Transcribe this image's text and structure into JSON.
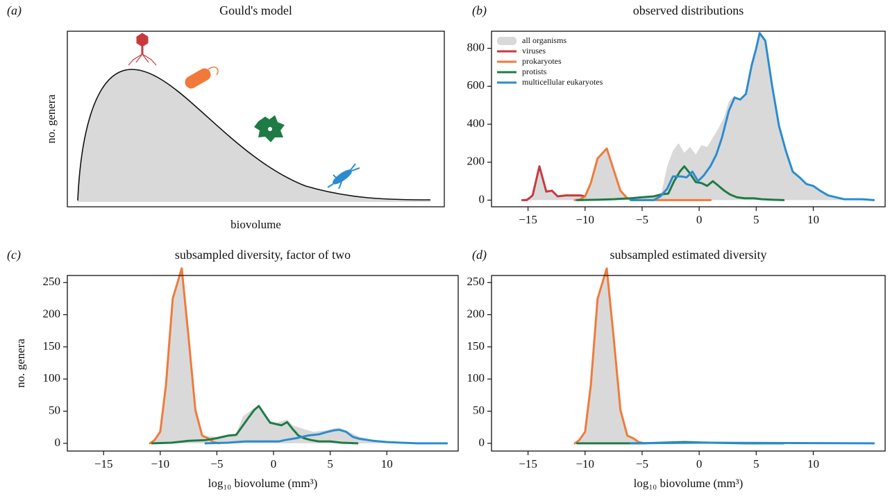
{
  "chart_data": [
    {
      "type": "illustration",
      "panel_label": "(a)",
      "title": "Gould's model",
      "xlabel": "biovolume",
      "ylabel": "no. genera"
    },
    {
      "type": "line",
      "panel_label": "(b)",
      "title": "observed distributions",
      "legend": "upper left",
      "xlim": [
        -18.2,
        16.3
      ],
      "ylim": [
        -35,
        890
      ],
      "xticks": [
        {
          "value": -15,
          "label": "−15"
        },
        {
          "value": -10,
          "label": "−10"
        },
        {
          "value": -5,
          "label": "−5"
        },
        0,
        5,
        10
      ],
      "yticks": [
        0,
        200,
        400,
        600,
        800
      ],
      "series": [
        {
          "name": "all organisms",
          "style": "area",
          "color": "#d9d9d9",
          "x": [
            -15.5,
            -14.6,
            -14,
            -13.4,
            -12.9,
            -12.4,
            -11.2,
            -10,
            -9.5,
            -8.9,
            -8.1,
            -7.5,
            -6.9,
            -6.3,
            -5,
            -4,
            -3.3,
            -2.8,
            -2.3,
            -1.8,
            -1.3,
            -0.8,
            -0.3,
            0.2,
            0.7,
            1.2,
            1.7,
            2.2,
            2.6,
            3.1,
            3.6,
            4.1,
            4.6,
            5,
            5.3,
            5.8,
            6.4,
            7,
            7.6,
            8.2,
            8.8,
            9.4,
            10,
            10.6,
            11.3,
            12,
            12.7,
            14.3,
            15.3
          ],
          "values": [
            0,
            25,
            178,
            45,
            50,
            20,
            25,
            25,
            90,
            220,
            272,
            160,
            50,
            10,
            15,
            20,
            40,
            180,
            260,
            300,
            250,
            280,
            240,
            290,
            280,
            330,
            380,
            440,
            520,
            550,
            530,
            560,
            710,
            800,
            880,
            840,
            600,
            390,
            260,
            150,
            120,
            85,
            75,
            50,
            25,
            15,
            5,
            5,
            0
          ]
        },
        {
          "name": "viruses",
          "style": "line",
          "color": "#c8393e",
          "x": [
            -15.5,
            -15.1,
            -14.6,
            -14,
            -13.4,
            -12.9,
            -12.4,
            -11.7,
            -11.2,
            -10.4,
            -10
          ],
          "values": [
            0,
            0,
            25,
            178,
            45,
            50,
            20,
            25,
            25,
            25,
            20
          ]
        },
        {
          "name": "prokaryotes",
          "style": "line",
          "color": "#f07a3a",
          "x": [
            -10.9,
            -10.5,
            -10,
            -9.5,
            -8.9,
            -8.1,
            -7.5,
            -6.9,
            -6.3,
            -5.8,
            -4,
            -2,
            0,
            1
          ],
          "values": [
            0,
            2,
            20,
            90,
            220,
            272,
            160,
            50,
            10,
            0,
            0,
            0,
            0,
            0
          ]
        },
        {
          "name": "protists",
          "style": "line",
          "color": "#1e7b45",
          "x": [
            -10.7,
            -9,
            -7.5,
            -6,
            -5,
            -4,
            -3.3,
            -2.7,
            -2.2,
            -1.7,
            -1.3,
            -0.8,
            -0.3,
            0.2,
            0.7,
            1.2,
            1.7,
            2.2,
            2.7,
            3.3,
            4,
            4.8,
            5.5,
            6.5,
            7.4
          ],
          "values": [
            0,
            2,
            5,
            10,
            15,
            20,
            30,
            35,
            100,
            150,
            178,
            140,
            95,
            90,
            75,
            100,
            75,
            50,
            30,
            15,
            10,
            10,
            5,
            2,
            0
          ]
        },
        {
          "name": "multicellular eukaryotes",
          "style": "line",
          "color": "#2a8ccf",
          "x": [
            -6,
            -4,
            -3.4,
            -2.8,
            -2.3,
            -1.6,
            -1.1,
            -0.6,
            -0.1,
            0.4,
            1,
            1.5,
            2,
            2.6,
            3.1,
            3.6,
            4.1,
            4.6,
            5,
            5.3,
            5.8,
            6.4,
            7,
            7.6,
            8.2,
            8.8,
            9.4,
            10,
            10.6,
            11.3,
            12,
            12.7,
            13.5,
            14.3,
            15.3
          ],
          "values": [
            0,
            0,
            20,
            60,
            125,
            125,
            120,
            150,
            100,
            130,
            180,
            240,
            330,
            470,
            540,
            530,
            560,
            710,
            800,
            880,
            840,
            600,
            390,
            260,
            150,
            120,
            85,
            75,
            50,
            25,
            15,
            5,
            5,
            5,
            0
          ]
        }
      ]
    },
    {
      "type": "line",
      "panel_label": "(c)",
      "title": "subsampled diversity, factor of two",
      "xlabel": "log₁₀ biovolume (mm³)",
      "ylabel": "no. genera",
      "xlim": [
        -18.2,
        16.3
      ],
      "ylim": [
        -12,
        261
      ],
      "xticks": [
        {
          "value": -15,
          "label": "−15"
        },
        {
          "value": -10,
          "label": "−10"
        },
        {
          "value": -5,
          "label": "−5"
        },
        0,
        5,
        10
      ],
      "yticks": [
        0,
        50,
        100,
        150,
        200,
        250
      ],
      "series": [
        {
          "style": "area",
          "color": "#d9d9d9",
          "x": [
            -10.9,
            -10,
            -9.5,
            -8.9,
            -8.1,
            -7.5,
            -6.9,
            -6.3,
            -5,
            -4,
            -3.3,
            -2.7,
            -1.7,
            -1.3,
            -0.8,
            -0.3,
            0.2,
            1.2,
            1.7,
            2.7,
            3.5,
            4.6,
            5.3,
            5.8,
            6.4,
            7.6,
            8.8,
            10,
            11.3,
            12.7,
            15.3
          ],
          "values": [
            0,
            18,
            90,
            225,
            272,
            165,
            52,
            12,
            10,
            14,
            15,
            42,
            55,
            60,
            48,
            35,
            32,
            37,
            28,
            22,
            18,
            20,
            23,
            24,
            20,
            10,
            5,
            2,
            1,
            0,
            0
          ]
        },
        {
          "style": "line",
          "color": "#f07a3a",
          "x": [
            -10.9,
            -10.5,
            -10,
            -9.5,
            -8.9,
            -8.1,
            -7.5,
            -6.9,
            -6.3,
            -5.8,
            -5.3,
            -4.8
          ],
          "values": [
            0,
            5,
            18,
            90,
            225,
            272,
            165,
            52,
            12,
            8,
            2,
            0
          ]
        },
        {
          "style": "line",
          "color": "#1e7b45",
          "x": [
            -10.7,
            -9,
            -7.5,
            -6,
            -5,
            -4,
            -3.3,
            -2.2,
            -1.7,
            -1.3,
            -0.8,
            -0.3,
            0.2,
            0.7,
            1.2,
            1.7,
            2.2,
            2.7,
            3.3,
            4,
            5,
            6,
            7.4
          ],
          "values": [
            0,
            1,
            4,
            5,
            8,
            12,
            13,
            40,
            52,
            58,
            45,
            32,
            30,
            28,
            33,
            22,
            12,
            8,
            5,
            3,
            3,
            1,
            0
          ]
        },
        {
          "style": "line",
          "color": "#2a8ccf",
          "x": [
            -6,
            -4,
            -2.5,
            -1,
            0.5,
            1,
            2,
            3,
            4,
            4.6,
            5.3,
            5.8,
            6.4,
            7,
            7.6,
            8.8,
            10,
            11.3,
            12.7,
            15.3
          ],
          "values": [
            0,
            1,
            3,
            3,
            3,
            5,
            8,
            12,
            14,
            17,
            20,
            21,
            18,
            10,
            7,
            4,
            2,
            1,
            0,
            0
          ]
        }
      ]
    },
    {
      "type": "line",
      "panel_label": "(d)",
      "title": "subsampled estimated diversity",
      "xlabel": "log₁₀ biovolume (mm³)",
      "xlim": [
        -18.2,
        16.3
      ],
      "ylim": [
        -12,
        261
      ],
      "xticks": [
        {
          "value": -15,
          "label": "−15"
        },
        {
          "value": -10,
          "label": "−10"
        },
        {
          "value": -5,
          "label": "−5"
        },
        0,
        5,
        10
      ],
      "yticks": [
        0,
        50,
        100,
        150,
        200,
        250
      ],
      "series": [
        {
          "style": "area",
          "color": "#d9d9d9",
          "x": [
            -10.9,
            -10,
            -9.5,
            -8.9,
            -8.1,
            -7.5,
            -6.9,
            -6.3,
            -5.3,
            -4,
            2,
            15.3
          ],
          "values": [
            0,
            18,
            90,
            225,
            272,
            165,
            52,
            12,
            2,
            1,
            1,
            0
          ]
        },
        {
          "style": "line",
          "color": "#f07a3a",
          "x": [
            -10.9,
            -10.5,
            -10,
            -9.5,
            -8.9,
            -8.1,
            -7.5,
            -6.9,
            -6.3,
            -5.8,
            -5.3,
            -4.8
          ],
          "values": [
            0,
            5,
            18,
            90,
            225,
            272,
            165,
            52,
            12,
            8,
            2,
            0
          ]
        },
        {
          "style": "line",
          "color": "#1e7b45",
          "x": [
            -10.7,
            -5,
            -1.3,
            1,
            4,
            7.4
          ],
          "values": [
            0,
            0,
            2,
            1,
            0,
            0
          ]
        },
        {
          "style": "line",
          "color": "#2a8ccf",
          "x": [
            -6,
            0,
            6,
            15.3
          ],
          "values": [
            0,
            1,
            0.5,
            0
          ]
        }
      ]
    }
  ]
}
